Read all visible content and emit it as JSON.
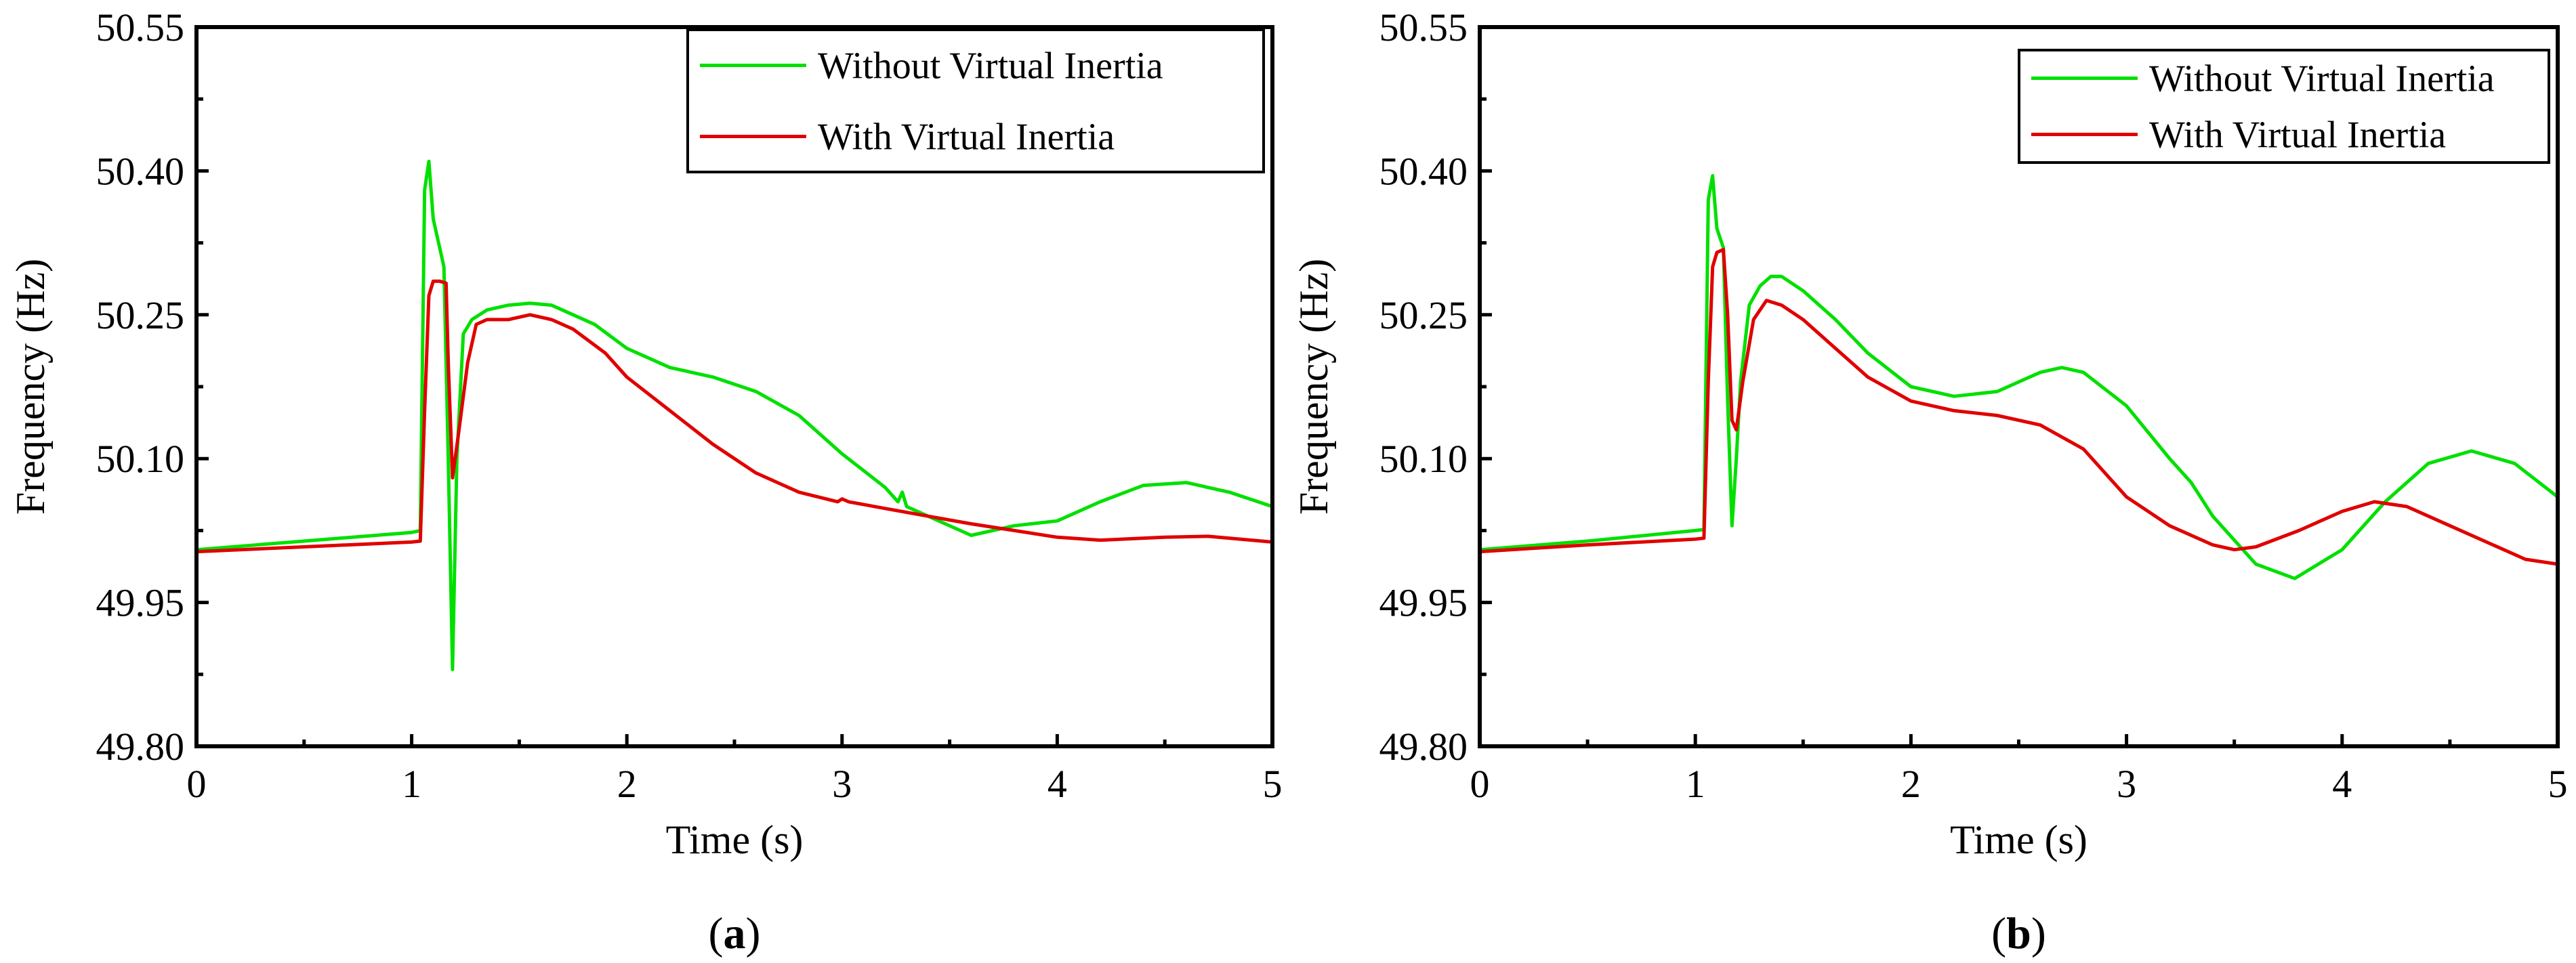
{
  "chart_data": [
    {
      "type": "line",
      "panel_label": "a",
      "xlabel": "Time (s)",
      "ylabel": "Frequency (Hz)",
      "xlim": [
        0,
        5
      ],
      "ylim": [
        49.8,
        50.55
      ],
      "x_ticks": [
        0,
        1,
        2,
        3,
        4,
        5
      ],
      "y_ticks": [
        49.8,
        49.95,
        50.1,
        50.25,
        50.4,
        50.55
      ],
      "y_tick_labels": [
        "49.80",
        "49.95",
        "50.10",
        "50.25",
        "50.40",
        "50.55"
      ],
      "grid": false,
      "legend_position": "top-right",
      "series": [
        {
          "name": "Without Virtual Inertia",
          "color": "#00e000",
          "points": [
            [
              0,
              50.005
            ],
            [
              0.5,
              50.014
            ],
            [
              1.0,
              50.023
            ],
            [
              1.04,
              50.025
            ],
            [
              1.06,
              50.38
            ],
            [
              1.08,
              50.41
            ],
            [
              1.1,
              50.35
            ],
            [
              1.13,
              50.32
            ],
            [
              1.15,
              50.3
            ],
            [
              1.17,
              50.1
            ],
            [
              1.19,
              49.88
            ],
            [
              1.21,
              50.1
            ],
            [
              1.24,
              50.23
            ],
            [
              1.28,
              50.245
            ],
            [
              1.35,
              50.255
            ],
            [
              1.45,
              50.26
            ],
            [
              1.55,
              50.262
            ],
            [
              1.65,
              50.26
            ],
            [
              1.7,
              50.255
            ],
            [
              1.75,
              50.25
            ],
            [
              1.85,
              50.24
            ],
            [
              2.0,
              50.215
            ],
            [
              2.2,
              50.195
            ],
            [
              2.4,
              50.185
            ],
            [
              2.6,
              50.17
            ],
            [
              2.8,
              50.145
            ],
            [
              3.0,
              50.105
            ],
            [
              3.2,
              50.07
            ],
            [
              3.26,
              50.055
            ],
            [
              3.28,
              50.065
            ],
            [
              3.3,
              50.05
            ],
            [
              3.4,
              50.04
            ],
            [
              3.6,
              50.02
            ],
            [
              3.8,
              50.03
            ],
            [
              4.0,
              50.035
            ],
            [
              4.2,
              50.055
            ],
            [
              4.4,
              50.072
            ],
            [
              4.6,
              50.075
            ],
            [
              4.8,
              50.065
            ],
            [
              5.0,
              50.05
            ]
          ]
        },
        {
          "name": "With Virtual Inertia",
          "color": "#e00000",
          "points": [
            [
              0,
              50.003
            ],
            [
              0.5,
              50.008
            ],
            [
              1.0,
              50.013
            ],
            [
              1.04,
              50.014
            ],
            [
              1.06,
              50.15
            ],
            [
              1.08,
              50.27
            ],
            [
              1.1,
              50.285
            ],
            [
              1.13,
              50.285
            ],
            [
              1.16,
              50.283
            ],
            [
              1.17,
              50.2
            ],
            [
              1.19,
              50.08
            ],
            [
              1.22,
              50.13
            ],
            [
              1.26,
              50.2
            ],
            [
              1.3,
              50.24
            ],
            [
              1.35,
              50.245
            ],
            [
              1.45,
              50.245
            ],
            [
              1.55,
              50.25
            ],
            [
              1.65,
              50.245
            ],
            [
              1.75,
              50.235
            ],
            [
              1.9,
              50.21
            ],
            [
              2.0,
              50.185
            ],
            [
              2.2,
              50.15
            ],
            [
              2.4,
              50.115
            ],
            [
              2.6,
              50.085
            ],
            [
              2.8,
              50.065
            ],
            [
              2.98,
              50.055
            ],
            [
              3.0,
              50.058
            ],
            [
              3.03,
              50.055
            ],
            [
              3.2,
              50.048
            ],
            [
              3.4,
              50.04
            ],
            [
              3.6,
              50.032
            ],
            [
              3.8,
              50.025
            ],
            [
              4.0,
              50.018
            ],
            [
              4.2,
              50.015
            ],
            [
              4.5,
              50.018
            ],
            [
              4.7,
              50.019
            ],
            [
              5.0,
              50.013
            ]
          ]
        }
      ]
    },
    {
      "type": "line",
      "panel_label": "b",
      "xlabel": "Time (s)",
      "ylabel": "Frequency (Hz)",
      "xlim": [
        0,
        5
      ],
      "ylim": [
        49.8,
        50.55
      ],
      "x_ticks": [
        0,
        1,
        2,
        3,
        4,
        5
      ],
      "y_ticks": [
        49.8,
        49.95,
        50.1,
        50.25,
        50.4,
        50.55
      ],
      "y_tick_labels": [
        "49.80",
        "49.95",
        "50.10",
        "50.25",
        "50.40",
        "50.55"
      ],
      "grid": false,
      "legend_position": "top-right",
      "series": [
        {
          "name": "Without Virtual Inertia",
          "color": "#00e000",
          "points": [
            [
              0,
              50.005
            ],
            [
              0.5,
              50.014
            ],
            [
              1.0,
              50.025
            ],
            [
              1.04,
              50.026
            ],
            [
              1.06,
              50.37
            ],
            [
              1.08,
              50.395
            ],
            [
              1.1,
              50.34
            ],
            [
              1.13,
              50.32
            ],
            [
              1.15,
              50.16
            ],
            [
              1.17,
              50.03
            ],
            [
              1.19,
              50.1
            ],
            [
              1.21,
              50.18
            ],
            [
              1.25,
              50.26
            ],
            [
              1.3,
              50.28
            ],
            [
              1.35,
              50.29
            ],
            [
              1.4,
              50.29
            ],
            [
              1.5,
              50.275
            ],
            [
              1.65,
              50.245
            ],
            [
              1.8,
              50.21
            ],
            [
              2.0,
              50.175
            ],
            [
              2.2,
              50.165
            ],
            [
              2.4,
              50.17
            ],
            [
              2.6,
              50.19
            ],
            [
              2.7,
              50.195
            ],
            [
              2.8,
              50.19
            ],
            [
              3.0,
              50.155
            ],
            [
              3.2,
              50.1
            ],
            [
              3.3,
              50.075
            ],
            [
              3.4,
              50.04
            ],
            [
              3.6,
              49.99
            ],
            [
              3.78,
              49.975
            ],
            [
              4.0,
              50.005
            ],
            [
              4.2,
              50.055
            ],
            [
              4.4,
              50.095
            ],
            [
              4.6,
              50.108
            ],
            [
              4.8,
              50.095
            ],
            [
              5.0,
              50.06
            ]
          ]
        },
        {
          "name": "With Virtual Inertia",
          "color": "#e00000",
          "points": [
            [
              0,
              50.003
            ],
            [
              0.5,
              50.01
            ],
            [
              1.0,
              50.016
            ],
            [
              1.04,
              50.017
            ],
            [
              1.06,
              50.18
            ],
            [
              1.08,
              50.3
            ],
            [
              1.1,
              50.315
            ],
            [
              1.13,
              50.318
            ],
            [
              1.15,
              50.25
            ],
            [
              1.17,
              50.14
            ],
            [
              1.19,
              50.13
            ],
            [
              1.22,
              50.18
            ],
            [
              1.27,
              50.245
            ],
            [
              1.33,
              50.265
            ],
            [
              1.4,
              50.26
            ],
            [
              1.5,
              50.245
            ],
            [
              1.65,
              50.215
            ],
            [
              1.8,
              50.185
            ],
            [
              2.0,
              50.16
            ],
            [
              2.2,
              50.15
            ],
            [
              2.4,
              50.145
            ],
            [
              2.6,
              50.135
            ],
            [
              2.8,
              50.11
            ],
            [
              3.0,
              50.06
            ],
            [
              3.2,
              50.03
            ],
            [
              3.4,
              50.01
            ],
            [
              3.5,
              50.005
            ],
            [
              3.6,
              50.008
            ],
            [
              3.8,
              50.025
            ],
            [
              4.0,
              50.045
            ],
            [
              4.15,
              50.055
            ],
            [
              4.3,
              50.05
            ],
            [
              4.5,
              50.03
            ],
            [
              4.7,
              50.01
            ],
            [
              4.85,
              49.995
            ],
            [
              5.0,
              49.99
            ]
          ]
        }
      ]
    }
  ]
}
